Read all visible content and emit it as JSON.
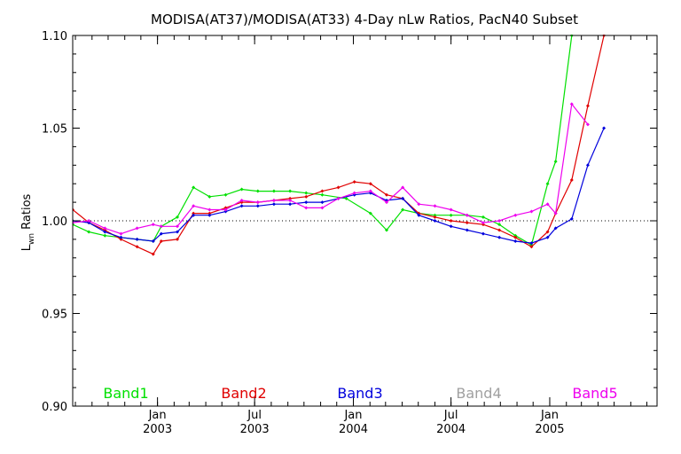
{
  "chart_data": {
    "type": "line",
    "title": "MODISA(AT37)/MODISA(AT33) 4-Day nLw Ratios, PacN40 Subset",
    "ylabel_main": "L",
    "ylabel_sub": "wn",
    "ylabel_rest": " Ratios",
    "ylim": [
      0.9,
      1.1
    ],
    "y_ticks": [
      "0.90",
      "0.95",
      "1.00",
      "1.05",
      "1.10"
    ],
    "y_tick_values": [
      0.9,
      0.95,
      1.0,
      1.05,
      1.1
    ],
    "xlim": [
      "2002-07-27",
      "2005-07-20"
    ],
    "x_ticks": [
      {
        "date": "2003-01-01",
        "month": "Jan",
        "year": "2003"
      },
      {
        "date": "2003-07-01",
        "month": "Jul",
        "year": "2003"
      },
      {
        "date": "2004-01-01",
        "month": "Jan",
        "year": "2004"
      },
      {
        "date": "2004-07-01",
        "month": "Jul",
        "year": "2004"
      },
      {
        "date": "2005-01-01",
        "month": "Jan",
        "year": "2005"
      }
    ],
    "reference_line": 1.0,
    "grid": false,
    "legend_position": "bottom",
    "series": [
      {
        "name": "Band1",
        "color": "#00e000",
        "points": [
          [
            "2002-07-27",
            0.998
          ],
          [
            "2002-08-26",
            0.994
          ],
          [
            "2002-09-25",
            0.992
          ],
          [
            "2002-10-25",
            0.991
          ],
          [
            "2002-11-24",
            0.99
          ],
          [
            "2002-12-24",
            0.989
          ],
          [
            "2003-01-08",
            0.997
          ],
          [
            "2003-02-07",
            1.002
          ],
          [
            "2003-03-09",
            1.018
          ],
          [
            "2003-04-08",
            1.013
          ],
          [
            "2003-05-08",
            1.014
          ],
          [
            "2003-06-07",
            1.017
          ],
          [
            "2003-07-07",
            1.016
          ],
          [
            "2003-08-06",
            1.016
          ],
          [
            "2003-09-05",
            1.016
          ],
          [
            "2003-10-05",
            1.015
          ],
          [
            "2003-11-04",
            1.014
          ],
          [
            "2003-12-19",
            1.012
          ],
          [
            "2004-02-02",
            1.004
          ],
          [
            "2004-03-03",
            0.995
          ],
          [
            "2004-04-02",
            1.006
          ],
          [
            "2004-05-02",
            1.004
          ],
          [
            "2004-06-01",
            1.003
          ],
          [
            "2004-07-01",
            1.003
          ],
          [
            "2004-07-31",
            1.003
          ],
          [
            "2004-08-30",
            1.002
          ],
          [
            "2004-09-29",
            0.998
          ],
          [
            "2004-10-29",
            0.992
          ],
          [
            "2004-11-28",
            0.987
          ],
          [
            "2004-12-28",
            1.02
          ],
          [
            "2005-01-12",
            1.032
          ],
          [
            "2005-02-11",
            1.1
          ]
        ]
      },
      {
        "name": "Band2",
        "color": "#e00000",
        "points": [
          [
            "2002-07-27",
            1.006
          ],
          [
            "2002-08-26",
            0.999
          ],
          [
            "2002-09-25",
            0.995
          ],
          [
            "2002-10-25",
            0.99
          ],
          [
            "2002-11-24",
            0.986
          ],
          [
            "2002-12-24",
            0.982
          ],
          [
            "2003-01-08",
            0.989
          ],
          [
            "2003-02-07",
            0.99
          ],
          [
            "2003-03-09",
            1.004
          ],
          [
            "2003-04-08",
            1.004
          ],
          [
            "2003-05-08",
            1.007
          ],
          [
            "2003-06-07",
            1.01
          ],
          [
            "2003-07-07",
            1.01
          ],
          [
            "2003-08-06",
            1.011
          ],
          [
            "2003-09-05",
            1.012
          ],
          [
            "2003-10-05",
            1.013
          ],
          [
            "2003-11-04",
            1.016
          ],
          [
            "2003-12-04",
            1.018
          ],
          [
            "2004-01-03",
            1.021
          ],
          [
            "2004-02-02",
            1.02
          ],
          [
            "2004-03-03",
            1.014
          ],
          [
            "2004-04-02",
            1.012
          ],
          [
            "2004-05-02",
            1.004
          ],
          [
            "2004-06-01",
            1.002
          ],
          [
            "2004-07-01",
            1.0
          ],
          [
            "2004-07-31",
            0.999
          ],
          [
            "2004-08-30",
            0.998
          ],
          [
            "2004-09-29",
            0.995
          ],
          [
            "2004-10-29",
            0.991
          ],
          [
            "2004-11-28",
            0.986
          ],
          [
            "2004-12-28",
            0.994
          ],
          [
            "2005-01-12",
            1.004
          ],
          [
            "2005-02-11",
            1.022
          ],
          [
            "2005-03-13",
            1.062
          ],
          [
            "2005-04-12",
            1.1
          ]
        ]
      },
      {
        "name": "Band3",
        "color": "#0000dd",
        "points": [
          [
            "2002-07-27",
            1.0
          ],
          [
            "2002-08-26",
            0.999
          ],
          [
            "2002-09-25",
            0.994
          ],
          [
            "2002-10-25",
            0.991
          ],
          [
            "2002-11-24",
            0.99
          ],
          [
            "2002-12-24",
            0.989
          ],
          [
            "2003-01-08",
            0.993
          ],
          [
            "2003-02-07",
            0.994
          ],
          [
            "2003-03-09",
            1.003
          ],
          [
            "2003-04-08",
            1.003
          ],
          [
            "2003-05-08",
            1.005
          ],
          [
            "2003-06-07",
            1.008
          ],
          [
            "2003-07-07",
            1.008
          ],
          [
            "2003-08-06",
            1.009
          ],
          [
            "2003-09-05",
            1.009
          ],
          [
            "2003-10-05",
            1.01
          ],
          [
            "2003-11-04",
            1.01
          ],
          [
            "2003-12-04",
            1.012
          ],
          [
            "2004-01-03",
            1.014
          ],
          [
            "2004-02-02",
            1.015
          ],
          [
            "2004-03-03",
            1.011
          ],
          [
            "2004-04-02",
            1.012
          ],
          [
            "2004-05-02",
            1.003
          ],
          [
            "2004-06-01",
            1.0
          ],
          [
            "2004-07-01",
            0.997
          ],
          [
            "2004-07-31",
            0.995
          ],
          [
            "2004-08-30",
            0.993
          ],
          [
            "2004-09-29",
            0.991
          ],
          [
            "2004-10-29",
            0.989
          ],
          [
            "2004-11-28",
            0.988
          ],
          [
            "2004-12-28",
            0.991
          ],
          [
            "2005-01-12",
            0.996
          ],
          [
            "2005-02-11",
            1.001
          ],
          [
            "2005-03-13",
            1.03
          ],
          [
            "2005-04-12",
            1.05
          ]
        ]
      },
      {
        "name": "Band4",
        "color": "#a0a0a0",
        "points": []
      },
      {
        "name": "Band5",
        "color": "#ee00ee",
        "points": [
          [
            "2002-07-27",
            0.999
          ],
          [
            "2002-08-26",
            1.0
          ],
          [
            "2002-09-25",
            0.996
          ],
          [
            "2002-10-25",
            0.993
          ],
          [
            "2002-11-24",
            0.996
          ],
          [
            "2002-12-24",
            0.998
          ],
          [
            "2003-01-08",
            0.997
          ],
          [
            "2003-02-07",
            0.997
          ],
          [
            "2003-03-09",
            1.008
          ],
          [
            "2003-04-08",
            1.006
          ],
          [
            "2003-05-08",
            1.006
          ],
          [
            "2003-06-07",
            1.011
          ],
          [
            "2003-07-07",
            1.01
          ],
          [
            "2003-08-06",
            1.011
          ],
          [
            "2003-09-05",
            1.011
          ],
          [
            "2003-10-05",
            1.007
          ],
          [
            "2003-11-04",
            1.007
          ],
          [
            "2003-12-04",
            1.012
          ],
          [
            "2004-01-03",
            1.015
          ],
          [
            "2004-02-02",
            1.016
          ],
          [
            "2004-03-03",
            1.01
          ],
          [
            "2004-04-02",
            1.018
          ],
          [
            "2004-05-02",
            1.009
          ],
          [
            "2004-06-01",
            1.008
          ],
          [
            "2004-07-01",
            1.006
          ],
          [
            "2004-07-31",
            1.003
          ],
          [
            "2004-08-30",
            0.999
          ],
          [
            "2004-09-29",
            1.0
          ],
          [
            "2004-10-29",
            1.003
          ],
          [
            "2004-11-28",
            1.005
          ],
          [
            "2004-12-28",
            1.009
          ],
          [
            "2005-01-12",
            1.004
          ],
          [
            "2005-02-11",
            1.063
          ],
          [
            "2005-03-13",
            1.052
          ]
        ]
      }
    ]
  }
}
